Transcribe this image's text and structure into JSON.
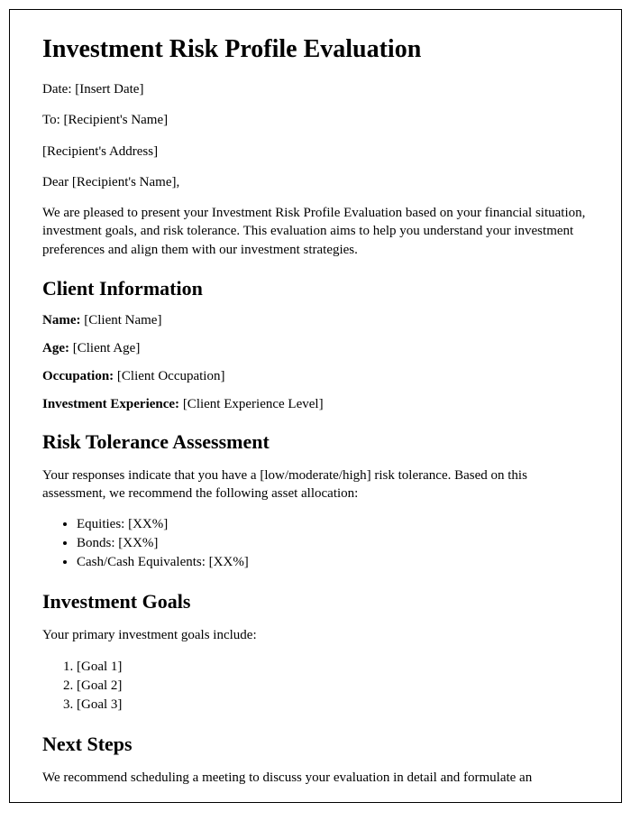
{
  "title": "Investment Risk Profile Evaluation",
  "header": {
    "date_label": "Date: ",
    "date_value": "[Insert Date]",
    "to_label": "To: ",
    "to_value": "[Recipient's Name]",
    "address": "[Recipient's Address]",
    "salutation": "Dear [Recipient's Name],"
  },
  "intro": "We are pleased to present your Investment Risk Profile Evaluation based on your financial situation, investment goals, and risk tolerance. This evaluation aims to help you understand your investment preferences and align them with our investment strategies.",
  "client_info": {
    "heading": "Client Information",
    "name_label": "Name: ",
    "name_value": "[Client Name]",
    "age_label": "Age: ",
    "age_value": "[Client Age]",
    "occupation_label": "Occupation: ",
    "occupation_value": "[Client Occupation]",
    "experience_label": "Investment Experience: ",
    "experience_value": "[Client Experience Level]"
  },
  "risk": {
    "heading": "Risk Tolerance Assessment",
    "intro": "Your responses indicate that you have a [low/moderate/high] risk tolerance. Based on this assessment, we recommend the following asset allocation:",
    "allocation": {
      "equities": "Equities: [XX%]",
      "bonds": "Bonds: [XX%]",
      "cash": "Cash/Cash Equivalents: [XX%]"
    }
  },
  "goals": {
    "heading": "Investment Goals",
    "intro": "Your primary investment goals include:",
    "items": {
      "g1": "[Goal 1]",
      "g2": "[Goal 2]",
      "g3": "[Goal 3]"
    }
  },
  "next_steps": {
    "heading": "Next Steps",
    "text": "We recommend scheduling a meeting to discuss your evaluation in detail and formulate an"
  },
  "style": {
    "font_family": "Times New Roman",
    "h1_fontsize": 28,
    "h2_fontsize": 22,
    "body_fontsize": 15,
    "text_color": "#000000",
    "background_color": "#ffffff",
    "border_color": "#000000"
  }
}
